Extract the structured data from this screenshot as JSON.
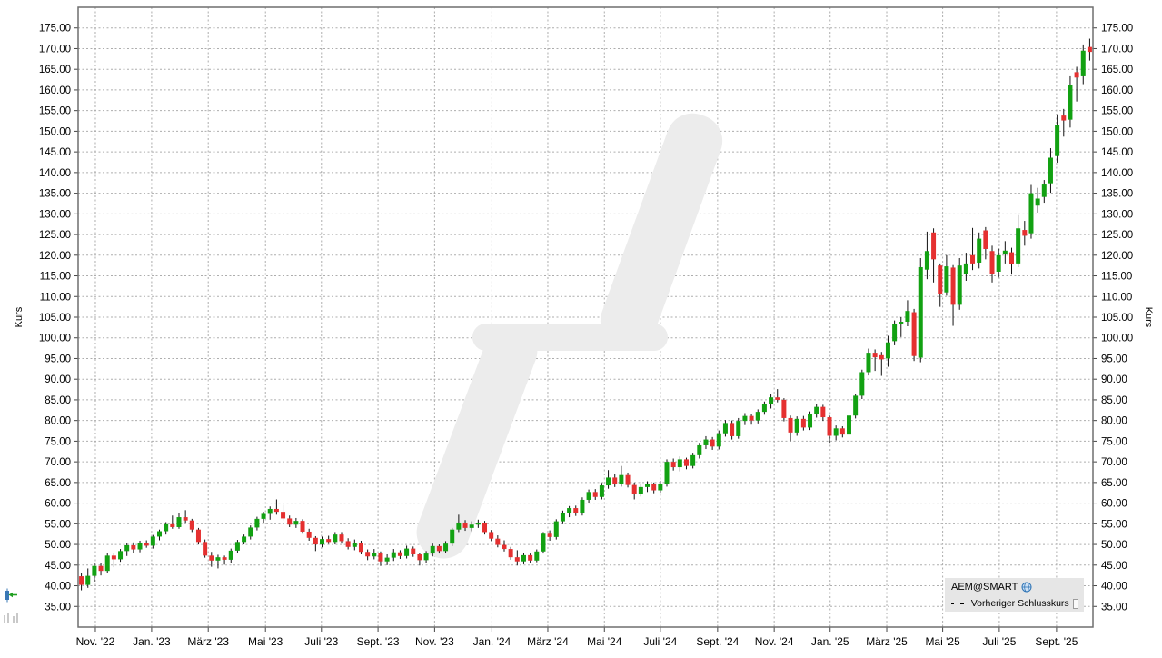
{
  "chart_data": {
    "type": "candlestick",
    "symbol": "AEM@SMART",
    "y_axis": {
      "title": "Kurs",
      "tick_min": 35,
      "tick_max": 175,
      "tick_step": 5,
      "value_min": 30,
      "value_max": 180,
      "decimals": 2,
      "sides": [
        "left",
        "right"
      ]
    },
    "x_axis": {
      "ticks": [
        {
          "label": "Nov. '22",
          "pos": 2.15
        },
        {
          "label": "Jan. '23",
          "pos": 10.8
        },
        {
          "label": "März '23",
          "pos": 19.5
        },
        {
          "label": "Mai '23",
          "pos": 28.3
        },
        {
          "label": "Juli '23",
          "pos": 36.9
        },
        {
          "label": "Sept. '23",
          "pos": 45.6
        },
        {
          "label": "Nov. '23",
          "pos": 54.3
        },
        {
          "label": "Jan. '24",
          "pos": 63.1
        },
        {
          "label": "März '24",
          "pos": 71.7
        },
        {
          "label": "Mai '24",
          "pos": 80.4
        },
        {
          "label": "Juli '24",
          "pos": 89.0
        },
        {
          "label": "Sept. '24",
          "pos": 97.8
        },
        {
          "label": "Nov. '24",
          "pos": 106.5
        },
        {
          "label": "Jan. '25",
          "pos": 115.1
        },
        {
          "label": "März '25",
          "pos": 123.8
        },
        {
          "label": "Mai '25",
          "pos": 132.4
        },
        {
          "label": "Juli '25",
          "pos": 141.1
        },
        {
          "label": "Sept. '25",
          "pos": 149.9
        }
      ]
    },
    "grid": {
      "horizontal": true,
      "vertical": true,
      "style": "dashed"
    },
    "legend": {
      "position": "bottom-right",
      "series_label": "AEM@SMART",
      "reference_series_label": "Vorheriger Schlusskurs",
      "reference_checkbox_checked": false
    },
    "candles_ohlc": [
      [
        42.3,
        43.0,
        38.9,
        40.2
      ],
      [
        40.2,
        44.2,
        39.5,
        42.4
      ],
      [
        42.4,
        45.5,
        41.0,
        44.8
      ],
      [
        44.8,
        45.6,
        42.5,
        43.6
      ],
      [
        43.6,
        47.9,
        43.0,
        47.3
      ],
      [
        47.3,
        48.0,
        44.5,
        46.4
      ],
      [
        46.4,
        48.9,
        45.8,
        48.4
      ],
      [
        48.4,
        50.4,
        47.2,
        49.8
      ],
      [
        49.8,
        50.5,
        48.0,
        48.8
      ],
      [
        48.8,
        50.9,
        48.1,
        50.3
      ],
      [
        50.3,
        51.0,
        49.2,
        49.7
      ],
      [
        49.7,
        52.3,
        49.0,
        51.9
      ],
      [
        51.9,
        53.6,
        51.0,
        53.2
      ],
      [
        53.2,
        55.4,
        52.4,
        54.9
      ],
      [
        54.9,
        57.0,
        53.8,
        54.2
      ],
      [
        54.2,
        57.6,
        53.8,
        56.6
      ],
      [
        56.6,
        58.3,
        55.2,
        55.8
      ],
      [
        55.8,
        56.2,
        53.0,
        53.6
      ],
      [
        53.6,
        54.0,
        50.0,
        50.6
      ],
      [
        50.6,
        51.2,
        46.8,
        47.3
      ],
      [
        47.3,
        48.2,
        44.6,
        46.1
      ],
      [
        46.1,
        47.5,
        44.2,
        46.9
      ],
      [
        46.9,
        47.3,
        45.1,
        46.3
      ],
      [
        46.3,
        49.0,
        45.6,
        48.5
      ],
      [
        48.5,
        51.1,
        47.9,
        50.6
      ],
      [
        50.6,
        52.4,
        50.0,
        51.9
      ],
      [
        51.9,
        54.6,
        51.2,
        54.1
      ],
      [
        54.1,
        56.7,
        53.4,
        56.2
      ],
      [
        56.2,
        57.9,
        55.3,
        57.4
      ],
      [
        57.4,
        59.2,
        56.0,
        58.6
      ],
      [
        58.6,
        60.9,
        57.2,
        57.9
      ],
      [
        57.9,
        59.6,
        55.8,
        56.3
      ],
      [
        56.3,
        57.0,
        54.2,
        54.8
      ],
      [
        54.8,
        56.4,
        54.0,
        55.7
      ],
      [
        55.7,
        56.1,
        52.6,
        53.1
      ],
      [
        53.1,
        53.8,
        50.9,
        51.6
      ],
      [
        51.6,
        52.0,
        48.4,
        50.0
      ],
      [
        50.0,
        51.9,
        49.3,
        51.3
      ],
      [
        51.3,
        52.1,
        50.1,
        50.6
      ],
      [
        50.6,
        53.0,
        50.0,
        52.4
      ],
      [
        52.4,
        53.0,
        50.2,
        50.8
      ],
      [
        50.8,
        51.5,
        48.8,
        49.4
      ],
      [
        49.4,
        51.2,
        48.6,
        50.4
      ],
      [
        50.4,
        50.9,
        47.6,
        48.2
      ],
      [
        48.2,
        48.8,
        46.2,
        47.1
      ],
      [
        47.1,
        48.9,
        46.4,
        48.0
      ],
      [
        48.0,
        48.3,
        44.8,
        45.9
      ],
      [
        45.9,
        47.6,
        45.0,
        46.8
      ],
      [
        46.8,
        48.9,
        46.0,
        48.1
      ],
      [
        48.1,
        48.6,
        46.5,
        47.2
      ],
      [
        47.2,
        49.7,
        46.6,
        49.0
      ],
      [
        49.0,
        49.5,
        47.0,
        47.6
      ],
      [
        47.6,
        48.0,
        44.9,
        46.2
      ],
      [
        46.2,
        48.4,
        45.5,
        47.8
      ],
      [
        47.8,
        50.2,
        47.1,
        49.6
      ],
      [
        49.6,
        50.0,
        47.8,
        48.4
      ],
      [
        48.4,
        50.8,
        47.9,
        50.2
      ],
      [
        50.2,
        54.0,
        49.6,
        53.6
      ],
      [
        53.6,
        57.2,
        53.0,
        55.3
      ],
      [
        55.3,
        55.9,
        53.3,
        54.0
      ],
      [
        54.0,
        55.6,
        53.2,
        54.8
      ],
      [
        54.8,
        56.0,
        54.0,
        55.3
      ],
      [
        55.3,
        55.7,
        52.4,
        53.0
      ],
      [
        53.0,
        53.5,
        50.8,
        51.4
      ],
      [
        51.4,
        52.2,
        49.3,
        49.9
      ],
      [
        49.9,
        51.0,
        48.3,
        48.9
      ],
      [
        48.9,
        49.4,
        46.3,
        46.9
      ],
      [
        46.9,
        48.6,
        44.9,
        45.9
      ],
      [
        45.9,
        48.0,
        45.2,
        47.4
      ],
      [
        47.4,
        47.8,
        45.4,
        46.1
      ],
      [
        46.1,
        48.8,
        45.7,
        48.3
      ],
      [
        48.3,
        53.0,
        47.8,
        52.6
      ],
      [
        52.6,
        53.4,
        50.9,
        51.8
      ],
      [
        51.8,
        56.1,
        51.2,
        55.6
      ],
      [
        55.6,
        58.2,
        54.9,
        57.6
      ],
      [
        57.6,
        59.3,
        56.6,
        58.8
      ],
      [
        58.8,
        59.4,
        56.9,
        57.7
      ],
      [
        57.7,
        61.4,
        57.0,
        60.8
      ],
      [
        60.8,
        63.3,
        59.9,
        62.7
      ],
      [
        62.7,
        63.4,
        60.8,
        61.5
      ],
      [
        61.5,
        64.9,
        60.9,
        64.3
      ],
      [
        64.3,
        68.0,
        63.5,
        66.2
      ],
      [
        66.2,
        67.0,
        63.9,
        64.6
      ],
      [
        64.6,
        69.0,
        64.0,
        66.8
      ],
      [
        66.8,
        67.4,
        63.8,
        64.4
      ],
      [
        64.4,
        65.0,
        60.9,
        62.3
      ],
      [
        62.3,
        64.6,
        61.6,
        63.9
      ],
      [
        63.9,
        65.3,
        62.7,
        64.6
      ],
      [
        64.6,
        65.0,
        62.4,
        63.1
      ],
      [
        63.1,
        65.4,
        62.5,
        64.7
      ],
      [
        64.7,
        70.6,
        64.0,
        70.0
      ],
      [
        70.0,
        70.8,
        67.9,
        68.7
      ],
      [
        68.7,
        71.3,
        67.7,
        70.6
      ],
      [
        70.6,
        71.0,
        68.2,
        69.0
      ],
      [
        69.0,
        72.2,
        68.4,
        71.6
      ],
      [
        71.6,
        74.6,
        70.8,
        74.0
      ],
      [
        74.0,
        76.2,
        73.1,
        75.4
      ],
      [
        75.4,
        76.0,
        72.9,
        73.7
      ],
      [
        73.7,
        77.6,
        73.0,
        76.9
      ],
      [
        76.9,
        80.1,
        76.1,
        79.4
      ],
      [
        79.4,
        80.0,
        75.4,
        76.2
      ],
      [
        76.2,
        80.6,
        75.6,
        79.9
      ],
      [
        79.9,
        81.8,
        78.9,
        81.1
      ],
      [
        81.1,
        81.6,
        79.0,
        80.0
      ],
      [
        80.0,
        82.7,
        79.3,
        82.1
      ],
      [
        82.1,
        84.6,
        81.4,
        84.0
      ],
      [
        84.0,
        86.3,
        82.9,
        85.6
      ],
      [
        85.6,
        87.6,
        84.4,
        85.0
      ],
      [
        85.0,
        85.4,
        79.8,
        80.6
      ],
      [
        80.6,
        81.2,
        75.0,
        77.1
      ],
      [
        77.1,
        81.0,
        76.3,
        80.4
      ],
      [
        80.4,
        81.1,
        77.6,
        78.3
      ],
      [
        78.3,
        82.2,
        77.7,
        81.6
      ],
      [
        81.6,
        83.9,
        80.7,
        83.3
      ],
      [
        83.3,
        83.8,
        79.9,
        80.8
      ],
      [
        80.8,
        81.3,
        74.6,
        76.3
      ],
      [
        76.3,
        78.8,
        75.2,
        78.1
      ],
      [
        78.1,
        78.6,
        75.9,
        76.6
      ],
      [
        76.6,
        81.7,
        76.0,
        81.2
      ],
      [
        81.2,
        86.5,
        80.5,
        86.0
      ],
      [
        86.0,
        92.3,
        85.2,
        91.7
      ],
      [
        91.7,
        97.4,
        90.9,
        96.4
      ],
      [
        96.4,
        97.2,
        92.0,
        95.3
      ],
      [
        95.8,
        96.6,
        90.8,
        94.8
      ],
      [
        95.0,
        100.5,
        93.0,
        98.9
      ],
      [
        99.2,
        104.2,
        98.2,
        103.3
      ],
      [
        103.3,
        105.0,
        100.2,
        103.9
      ],
      [
        103.9,
        109.1,
        102.8,
        106.5
      ],
      [
        106.2,
        107.0,
        94.4,
        95.6
      ],
      [
        95.2,
        119.3,
        94.1,
        117.1
      ],
      [
        116.5,
        125.7,
        114.2,
        121.0
      ],
      [
        125.5,
        126.5,
        113.4,
        119.0
      ],
      [
        117.5,
        118.0,
        107.5,
        110.5
      ],
      [
        111.0,
        120.0,
        110.2,
        117.3
      ],
      [
        117.0,
        117.6,
        102.9,
        108.0
      ],
      [
        108.0,
        119.3,
        106.8,
        117.5
      ],
      [
        115.5,
        120.6,
        113.8,
        118.0
      ],
      [
        120.0,
        126.6,
        116.4,
        118.0
      ],
      [
        118.2,
        125.5,
        116.8,
        124.0
      ],
      [
        126.0,
        126.8,
        119.0,
        121.5
      ],
      [
        121.0,
        122.3,
        113.4,
        115.5
      ],
      [
        116.0,
        121.6,
        114.6,
        120.0
      ],
      [
        120.3,
        123.4,
        118.0,
        121.1
      ],
      [
        120.7,
        121.8,
        115.3,
        117.8
      ],
      [
        118.0,
        129.7,
        117.1,
        126.5
      ],
      [
        126.1,
        128.3,
        122.3,
        124.7
      ],
      [
        125.3,
        137.0,
        124.0,
        135.0
      ],
      [
        132.0,
        136.3,
        130.3,
        133.7
      ],
      [
        134.1,
        138.2,
        132.7,
        137.1
      ],
      [
        137.4,
        145.9,
        135.1,
        143.6
      ],
      [
        144.0,
        154.1,
        142.4,
        151.6
      ],
      [
        153.8,
        155.4,
        148.7,
        152.6
      ],
      [
        152.8,
        163.3,
        150.9,
        161.3
      ],
      [
        164.3,
        165.6,
        157.2,
        163.0
      ],
      [
        163.3,
        171.0,
        161.4,
        169.5
      ],
      [
        170.4,
        172.4,
        167.1,
        169.2
      ]
    ]
  },
  "colors": {
    "up": "#12a112",
    "down": "#e53030",
    "wick": "#111111",
    "grid": "#adadad",
    "border": "#6f6f6f",
    "axis_text": "#000000",
    "watermark": "#ececec",
    "legend_bg": "#e6e6e6",
    "globe_icon": "#2f74b5",
    "tool_candle_icon": "#3a78b5",
    "tool_arrow_icon": "#22a022",
    "tool_bars_icon": "#c9c9c9"
  },
  "toolbar": {
    "icons": [
      "candlestick-tool-icon",
      "volume-bars-icon"
    ]
  }
}
